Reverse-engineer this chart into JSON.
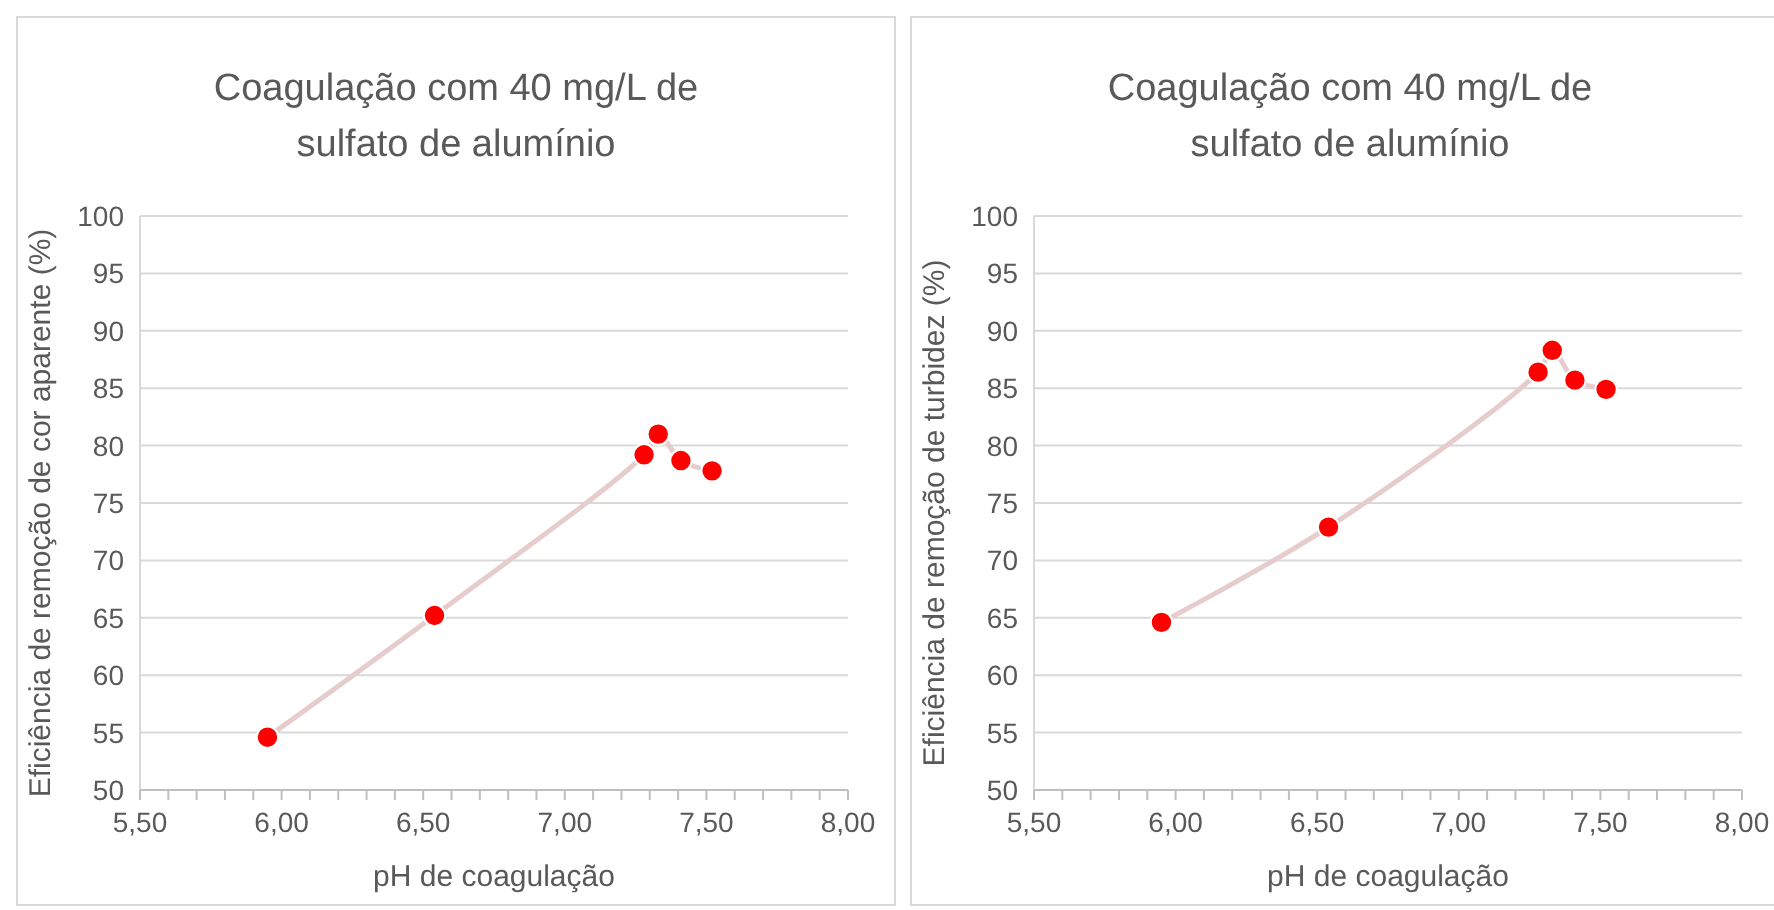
{
  "chart_data": [
    {
      "type": "scatter",
      "title": "Coagulação com 40 mg/L de sulfato de alumínio",
      "xlabel": "pH de coagulação",
      "ylabel": "Eficiência de remoção de cor aparente (%)",
      "grid": "y",
      "xlim": [
        5.5,
        8.0
      ],
      "ylim": [
        50,
        100
      ],
      "xticks": [
        {
          "value": 5.5,
          "label": "5,50"
        },
        {
          "value": 5.6,
          "label": null
        },
        {
          "value": 5.7,
          "label": null
        },
        {
          "value": 5.8,
          "label": null
        },
        {
          "value": 5.9,
          "label": null
        },
        {
          "value": 6.0,
          "label": "6,00"
        },
        {
          "value": 6.1,
          "label": null
        },
        {
          "value": 6.2,
          "label": null
        },
        {
          "value": 6.3,
          "label": null
        },
        {
          "value": 6.4,
          "label": null
        },
        {
          "value": 6.5,
          "label": "6,50"
        },
        {
          "value": 6.6,
          "label": null
        },
        {
          "value": 6.7,
          "label": null
        },
        {
          "value": 6.8,
          "label": null
        },
        {
          "value": 6.9,
          "label": null
        },
        {
          "value": 7.0,
          "label": "7,00"
        },
        {
          "value": 7.1,
          "label": null
        },
        {
          "value": 7.2,
          "label": null
        },
        {
          "value": 7.3,
          "label": null
        },
        {
          "value": 7.4,
          "label": null
        },
        {
          "value": 7.5,
          "label": "7,50"
        },
        {
          "value": 7.6,
          "label": null
        },
        {
          "value": 7.7,
          "label": null
        },
        {
          "value": 7.8,
          "label": null
        },
        {
          "value": 7.9,
          "label": null
        },
        {
          "value": 8.0,
          "label": "8,00"
        }
      ],
      "yticks": [
        50,
        55,
        60,
        65,
        70,
        75,
        80,
        85,
        90,
        95,
        100
      ],
      "series": [
        {
          "type": "line",
          "marker": "none",
          "color": "#e6cccc",
          "x": [
            5.95,
            6.54,
            7.28,
            7.33,
            7.41,
            7.52
          ],
          "values": [
            54.6,
            65.2,
            79.2,
            81.0,
            78.7,
            77.8
          ]
        },
        {
          "marker": "circle",
          "color": "#ff0000",
          "x": [
            5.95,
            6.54,
            7.28,
            7.33,
            7.41,
            7.52
          ],
          "values": [
            54.6,
            65.2,
            79.2,
            81.0,
            78.7,
            77.8
          ]
        }
      ]
    },
    {
      "type": "scatter",
      "title": "Coagulação com 40 mg/L de sulfato de alumínio",
      "xlabel": "pH de coagulação",
      "ylabel": "Eficiência de remoção de turbidez (%)",
      "grid": "y",
      "xlim": [
        5.5,
        8.0
      ],
      "ylim": [
        50,
        100
      ],
      "xticks": [
        {
          "value": 5.5,
          "label": "5,50"
        },
        {
          "value": 5.6,
          "label": null
        },
        {
          "value": 5.7,
          "label": null
        },
        {
          "value": 5.8,
          "label": null
        },
        {
          "value": 5.9,
          "label": null
        },
        {
          "value": 6.0,
          "label": "6,00"
        },
        {
          "value": 6.1,
          "label": null
        },
        {
          "value": 6.2,
          "label": null
        },
        {
          "value": 6.3,
          "label": null
        },
        {
          "value": 6.4,
          "label": null
        },
        {
          "value": 6.5,
          "label": "6,50"
        },
        {
          "value": 6.6,
          "label": null
        },
        {
          "value": 6.7,
          "label": null
        },
        {
          "value": 6.8,
          "label": null
        },
        {
          "value": 6.9,
          "label": null
        },
        {
          "value": 7.0,
          "label": "7,00"
        },
        {
          "value": 7.1,
          "label": null
        },
        {
          "value": 7.2,
          "label": null
        },
        {
          "value": 7.3,
          "label": null
        },
        {
          "value": 7.4,
          "label": null
        },
        {
          "value": 7.5,
          "label": "7,50"
        },
        {
          "value": 7.6,
          "label": null
        },
        {
          "value": 7.7,
          "label": null
        },
        {
          "value": 7.8,
          "label": null
        },
        {
          "value": 7.9,
          "label": null
        },
        {
          "value": 8.0,
          "label": "8,00"
        }
      ],
      "yticks": [
        50,
        55,
        60,
        65,
        70,
        75,
        80,
        85,
        90,
        95,
        100
      ],
      "series": [
        {
          "type": "line",
          "marker": "none",
          "color": "#e6cccc",
          "x": [
            5.95,
            6.54,
            7.28,
            7.33,
            7.41,
            7.52
          ],
          "values": [
            64.6,
            72.9,
            86.4,
            88.3,
            85.7,
            84.9
          ]
        },
        {
          "marker": "circle",
          "color": "#ff0000",
          "x": [
            5.95,
            6.54,
            7.28,
            7.33,
            7.41,
            7.52
          ],
          "values": [
            64.6,
            72.9,
            86.4,
            88.3,
            85.7,
            84.9
          ]
        }
      ]
    }
  ]
}
